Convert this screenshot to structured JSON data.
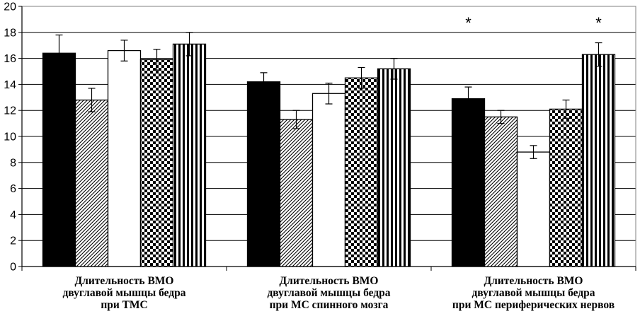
{
  "chart_data": {
    "type": "bar",
    "title": "",
    "xlabel": "",
    "ylabel": "",
    "ylim": [
      0,
      20
    ],
    "yticks": [
      "0",
      "2",
      "4",
      "6",
      "8",
      "10",
      "12",
      "14",
      "16",
      "18",
      "20"
    ],
    "grid": true,
    "legend": "none",
    "categories": [
      [
        "Длительность ВМО",
        "двуглавой мышцы бедра",
        "при ТМС"
      ],
      [
        "Длительность ВМО",
        "двуглавой мышцы бедра",
        "при МС спинного мозга"
      ],
      [
        "Длительность ВМО",
        "двуглавой мышцы бедра",
        "при МС периферических нервов"
      ]
    ],
    "series": [
      {
        "pattern": "solid-black",
        "values": [
          16.4,
          14.2,
          12.9
        ],
        "errors": [
          1.4,
          0.7,
          0.9
        ]
      },
      {
        "pattern": "diagonal-hatch",
        "values": [
          12.8,
          11.3,
          11.5
        ],
        "errors": [
          0.9,
          0.7,
          0.5
        ]
      },
      {
        "pattern": "white",
        "values": [
          16.6,
          13.3,
          8.8
        ],
        "errors": [
          0.8,
          0.8,
          0.5
        ]
      },
      {
        "pattern": "checkerboard",
        "values": [
          15.9,
          14.5,
          12.1
        ],
        "errors": [
          0.8,
          0.8,
          0.7
        ]
      },
      {
        "pattern": "vertical-stripes",
        "values": [
          17.1,
          15.2,
          16.3
        ],
        "errors": [
          0.9,
          0.8,
          0.9
        ]
      }
    ],
    "annotations": [
      {
        "text": "*",
        "category": 2,
        "series": 0
      },
      {
        "text": "*",
        "category": 2,
        "series": 4
      }
    ],
    "colors": {
      "bar_stroke": "#000000",
      "grid": "#000000",
      "background": "#ffffff"
    }
  }
}
